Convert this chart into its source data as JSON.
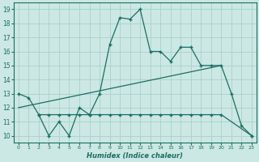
{
  "xlabel": "Humidex (Indice chaleur)",
  "background_color": "#cce8e4",
  "grid_color": "#aacfca",
  "line_color": "#1a6e64",
  "xlim": [
    -0.5,
    23.5
  ],
  "ylim": [
    9.5,
    19.5
  ],
  "xticks": [
    0,
    1,
    2,
    3,
    4,
    5,
    6,
    7,
    8,
    9,
    10,
    11,
    12,
    13,
    14,
    15,
    16,
    17,
    18,
    19,
    20,
    21,
    22,
    23
  ],
  "yticks": [
    10,
    11,
    12,
    13,
    14,
    15,
    16,
    17,
    18,
    19
  ],
  "line1_x": [
    0,
    1,
    2,
    3,
    4,
    5,
    6,
    7,
    8,
    9,
    10,
    11,
    12,
    13,
    14,
    15,
    16,
    17,
    18,
    19,
    20,
    21,
    22,
    23
  ],
  "line1_y": [
    13,
    12.7,
    11.5,
    10,
    11,
    10,
    12,
    11.5,
    13,
    16.5,
    18.4,
    18.3,
    19,
    16,
    16,
    15.3,
    16.3,
    16.3,
    15,
    15,
    15,
    13,
    10.7,
    10
  ],
  "line2_x": [
    2,
    3,
    4,
    5,
    6,
    7,
    8,
    9,
    10,
    11,
    12,
    13,
    14,
    15,
    16,
    17,
    18,
    19,
    20,
    23
  ],
  "line2_y": [
    11.5,
    11.5,
    11.5,
    11.5,
    11.5,
    11.5,
    11.5,
    11.5,
    11.5,
    11.5,
    11.5,
    11.5,
    11.5,
    11.5,
    11.5,
    11.5,
    11.5,
    11.5,
    11.5,
    10
  ],
  "line3_x": [
    0,
    20
  ],
  "line3_y": [
    12,
    15
  ]
}
